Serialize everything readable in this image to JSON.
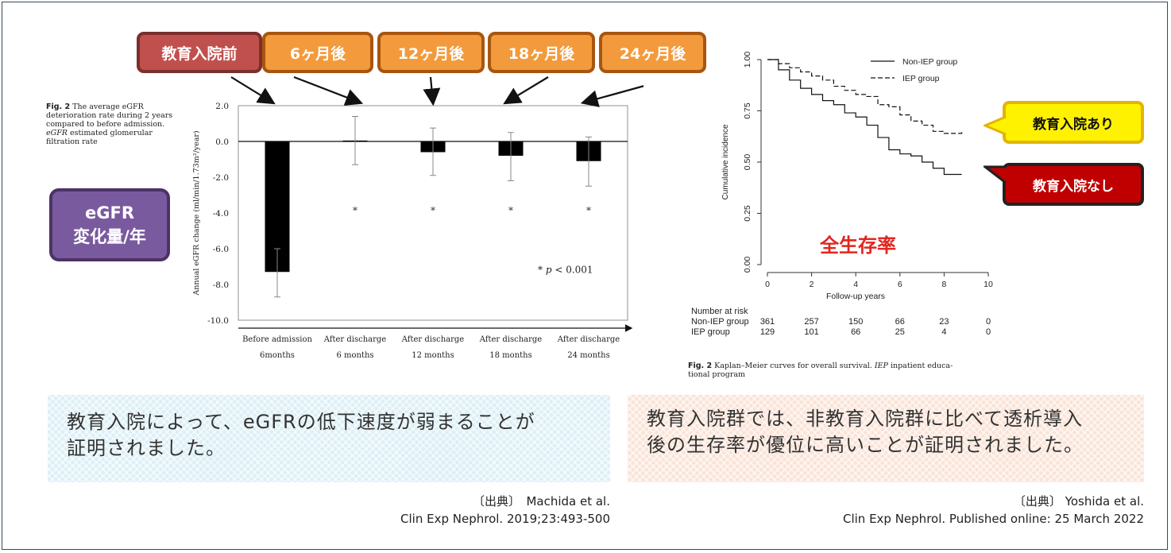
{
  "tags": [
    "教育入院前",
    "6ヶ月後",
    "12ヶ月後",
    "18ヶ月後",
    "24ヶ月後"
  ],
  "left_caption": {
    "fig_label": "Fig. 2",
    "line1": "The average eGFR",
    "line2": "deterioration rate during 2 years",
    "line3": "compared to before admission.",
    "line4_em": "eGFR",
    "line4_rest": " estimated glomerular",
    "line5": "filtration rate"
  },
  "egfr_box": {
    "line1": "eGFR",
    "line2": "変化量/年"
  },
  "chart_data": [
    {
      "type": "bar",
      "ylabel": "Annual eGFR change (ml/min/1.73m²/year)",
      "ylim": [
        -10,
        2
      ],
      "yticks": [
        "2.0",
        "0.0",
        "-2.0",
        "-4.0",
        "-6.0",
        "-8.0",
        "-10.0"
      ],
      "categories": [
        {
          "line1": "Before admission",
          "line2": "6months"
        },
        {
          "line1": "After discharge",
          "line2": "6 months"
        },
        {
          "line1": "After discharge",
          "line2": "12 months"
        },
        {
          "line1": "After discharge",
          "line2": "18 months"
        },
        {
          "line1": "After discharge",
          "line2": "24 months"
        }
      ],
      "values": [
        -7.3,
        0.05,
        -0.6,
        -0.8,
        -1.1
      ],
      "error_upper": [
        -6.0,
        1.4,
        0.75,
        0.5,
        0.25
      ],
      "error_lower": [
        -8.7,
        -1.3,
        -1.9,
        -2.2,
        -2.5
      ],
      "significance": [
        "",
        "*",
        "*",
        "*",
        "*"
      ],
      "annotation": {
        "star": "*",
        "p": "p",
        "rest": " < 0.001"
      }
    },
    {
      "type": "line",
      "xlabel": "Follow-up years",
      "ylabel": "Cumulative incidence",
      "xlim": [
        0,
        10
      ],
      "ylim": [
        0,
        1
      ],
      "xticks": [
        "0",
        "2",
        "4",
        "6",
        "8",
        "10"
      ],
      "yticks": [
        "0.00",
        "0.25",
        "0.50",
        "0.75",
        "1.00"
      ],
      "legend": [
        "Non-IEP group",
        "IEP group"
      ],
      "series": [
        {
          "name": "Non-IEP group",
          "x": [
            0,
            0.5,
            1,
            1.5,
            2,
            2.5,
            3,
            3.5,
            4,
            4.5,
            5,
            5.5,
            6,
            6.5,
            7,
            7.5,
            8,
            8.8
          ],
          "y": [
            1.0,
            0.95,
            0.9,
            0.86,
            0.83,
            0.8,
            0.78,
            0.74,
            0.72,
            0.68,
            0.62,
            0.56,
            0.54,
            0.53,
            0.5,
            0.47,
            0.44,
            0.44
          ]
        },
        {
          "name": "IEP group",
          "x": [
            0,
            0.5,
            1,
            1.5,
            2,
            2.5,
            3,
            3.5,
            4,
            4.5,
            5,
            5.5,
            6,
            6.5,
            7,
            7.5,
            8,
            8.8
          ],
          "y": [
            1.0,
            0.98,
            0.96,
            0.94,
            0.92,
            0.9,
            0.87,
            0.85,
            0.83,
            0.82,
            0.78,
            0.77,
            0.73,
            0.7,
            0.68,
            0.65,
            0.64,
            0.65
          ]
        }
      ],
      "risk_table": {
        "title": "Number at risk",
        "rows": [
          {
            "label": "Non-IEP group",
            "values": [
              "361",
              "257",
              "150",
              "66",
              "23",
              "0"
            ]
          },
          {
            "label": "IEP group",
            "values": [
              "129",
              "101",
              "66",
              "25",
              "4",
              "0"
            ]
          }
        ]
      },
      "overlay_title": "全生存率"
    }
  ],
  "callouts": {
    "with": "教育入院あり",
    "without": "教育入院なし"
  },
  "right_caption": {
    "fig_label": "Fig. 2",
    "text1": "Kaplan–Meier curves for overall survival.",
    "em": "IEP",
    "text2": " inpatient educa-",
    "line2": "tional program"
  },
  "notes": {
    "left_line1": "教育入院によって、eGFRの低下速度が弱まることが",
    "left_line2": "証明されました。",
    "right_line1": "教育入院群では、非教育入院群に比べて透析導入",
    "right_line2": "後の生存率が優位に高いことが証明されました。"
  },
  "sources": {
    "left_line1": "〔出典〕　Machida et al.",
    "left_line2": "Clin Exp Nephrol. 2019;23:493-500",
    "right_line1": "〔出典〕 Yoshida et al.",
    "right_line2": "Clin Exp Nephrol. Published online: 25 March 2022"
  },
  "colors": {
    "tag_orange": "#f39a3c",
    "tag_red": "#c0504d",
    "purple": "#7a5a9e",
    "yellow": "#fff200",
    "dark_red": "#c00000",
    "title_red": "#e0261f"
  }
}
